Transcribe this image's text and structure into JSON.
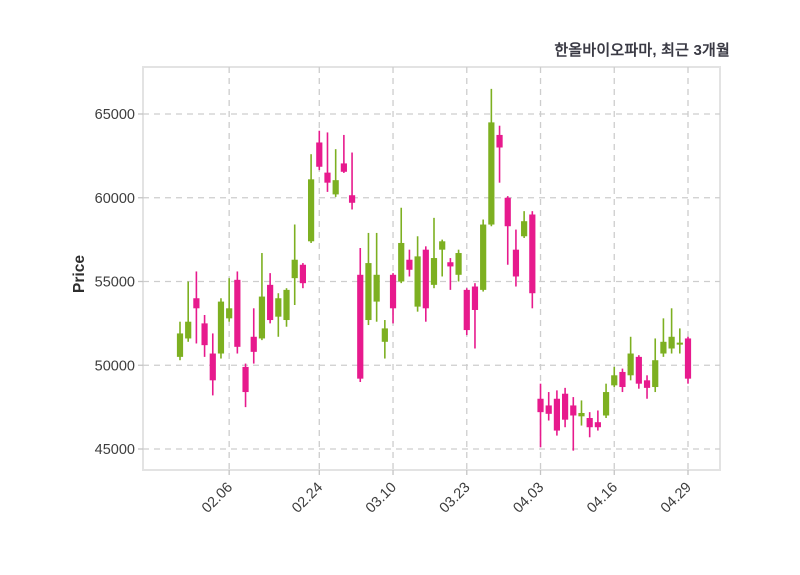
{
  "title": "한올바이오파마, 최근 3개월",
  "colors": {
    "up": "#7db021",
    "down": "#e71a8d",
    "grid": "#cdcdcd",
    "panel_border": "#e3e3e3",
    "tick_text": "#3d3d3d",
    "title_text": "#3a3a44",
    "background": "#ffffff"
  },
  "chart_data": {
    "type": "candlestick",
    "title": "한올바이오파마, 최근 3개월",
    "ylabel": "Price",
    "xlabel": "",
    "grid": "dashed",
    "y_ticks": [
      45000,
      50000,
      55000,
      60000,
      65000
    ],
    "ylim": [
      43700,
      67650
    ],
    "x_tick_labels": [
      "02.06",
      "02.24",
      "03.10",
      "03.23",
      "04.03",
      "04.16",
      "04.29"
    ],
    "x_tick_candle_indices": [
      6,
      17,
      26,
      35,
      44,
      53,
      62
    ],
    "candles_format": [
      "open",
      "high",
      "low",
      "close"
    ],
    "up_color": "#7db021",
    "down_color": "#e71a8d",
    "candles_ohlc": [
      [
        50500,
        52600,
        50300,
        51900
      ],
      [
        51600,
        55000,
        51400,
        52600
      ],
      [
        54000,
        55600,
        51300,
        53400
      ],
      [
        52500,
        53000,
        50500,
        51200
      ],
      [
        50700,
        51900,
        48200,
        49100
      ],
      [
        50700,
        54000,
        50400,
        53800
      ],
      [
        52800,
        55200,
        52600,
        53400
      ],
      [
        55100,
        55600,
        50700,
        51100
      ],
      [
        49900,
        50100,
        47500,
        48400
      ],
      [
        51700,
        53400,
        50100,
        50800
      ],
      [
        51600,
        56700,
        51500,
        54100
      ],
      [
        54800,
        55500,
        52500,
        52700
      ],
      [
        52900,
        54300,
        51700,
        54000
      ],
      [
        52700,
        54600,
        52300,
        54500
      ],
      [
        55200,
        58400,
        53600,
        56300
      ],
      [
        56000,
        56100,
        54600,
        54900
      ],
      [
        57400,
        62600,
        57300,
        61100
      ],
      [
        63300,
        64000,
        61650,
        61850
      ],
      [
        61500,
        63900,
        60350,
        60900
      ],
      [
        60200,
        62900,
        60050,
        61050
      ],
      [
        62050,
        63750,
        61480,
        61550
      ],
      [
        60150,
        62700,
        59300,
        59700
      ],
      [
        55400,
        57000,
        49000,
        49200
      ],
      [
        52700,
        57900,
        52400,
        56100
      ],
      [
        53800,
        57900,
        52600,
        55400
      ],
      [
        51400,
        52700,
        50400,
        52200
      ],
      [
        55400,
        55500,
        52500,
        53400
      ],
      [
        55000,
        59400,
        54900,
        57300
      ],
      [
        56300,
        56900,
        55300,
        55700
      ],
      [
        53500,
        57700,
        53200,
        56500
      ],
      [
        56900,
        57100,
        52600,
        53400
      ],
      [
        54800,
        58800,
        54600,
        56400
      ],
      [
        56900,
        57500,
        55300,
        57400
      ],
      [
        56150,
        56400,
        54500,
        55900
      ],
      [
        55400,
        56900,
        55000,
        56700
      ],
      [
        54500,
        54600,
        51800,
        52100
      ],
      [
        54700,
        54900,
        51000,
        53300
      ],
      [
        54500,
        58700,
        54400,
        58400
      ],
      [
        58400,
        66500,
        58300,
        64500
      ],
      [
        63750,
        64300,
        60900,
        63000
      ],
      [
        60000,
        60100,
        56000,
        58300
      ],
      [
        56900,
        58100,
        54700,
        55300
      ],
      [
        57700,
        59200,
        57600,
        58600
      ],
      [
        59000,
        59200,
        53400,
        54300
      ],
      [
        48000,
        48900,
        45100,
        47200
      ],
      [
        47600,
        48400,
        46700,
        47100
      ],
      [
        48000,
        48500,
        45800,
        46100
      ],
      [
        48300,
        48650,
        46300,
        46750
      ],
      [
        47600,
        48100,
        44900,
        47000
      ],
      [
        46950,
        47900,
        46400,
        47150
      ],
      [
        46850,
        47200,
        45700,
        46300
      ],
      [
        46600,
        47300,
        46100,
        46300
      ],
      [
        47000,
        48900,
        46850,
        48400
      ],
      [
        48800,
        49900,
        48700,
        49400
      ],
      [
        49600,
        49800,
        48400,
        48700
      ],
      [
        49400,
        51700,
        49100,
        50700
      ],
      [
        50500,
        50600,
        48600,
        48900
      ],
      [
        49100,
        49400,
        48000,
        48650
      ],
      [
        48700,
        51600,
        48400,
        50300
      ],
      [
        50700,
        52800,
        50500,
        51400
      ],
      [
        51000,
        53400,
        50700,
        51700
      ],
      [
        51250,
        52200,
        50700,
        51350
      ],
      [
        51600,
        51700,
        48900,
        49200
      ]
    ]
  }
}
